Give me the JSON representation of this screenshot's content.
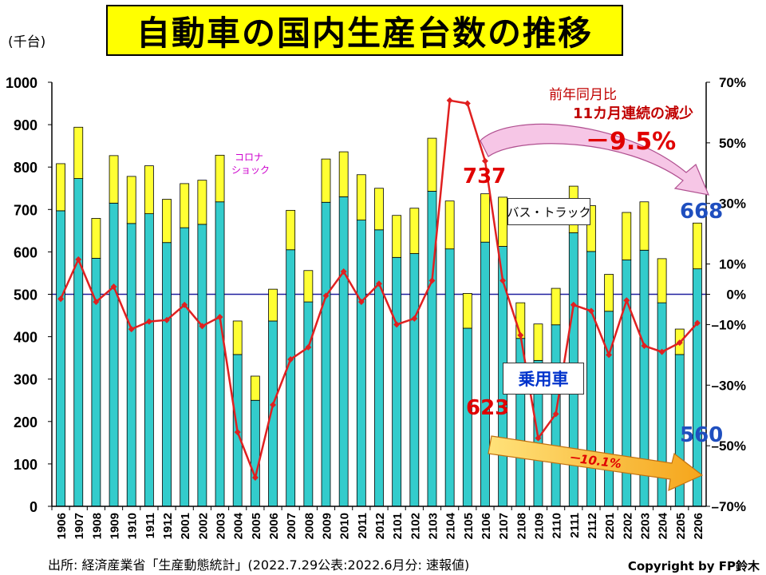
{
  "title": "自動車の国内生産台数の推移",
  "unit_label": "(千台)",
  "source": "出所: 経済産業省「生産動態統計」(2022.7.29公表:2022.6月分: 速報値)",
  "copyright": "Copyright by FP鈴木",
  "annotations": {
    "yoy_line1": "前年同月比",
    "yoy_line2": "11カ月連続の減少",
    "yoy_value": "－9.5%",
    "corona_line1": "コロナ",
    "corona_line2": "ショック",
    "bus_truck": "バス・トラック",
    "passenger_car": "乗用車",
    "total_2106": "737",
    "total_2206": "668",
    "car_2106": "623",
    "car_2206": "560",
    "car_change": "－10.1%"
  },
  "colors": {
    "passenger": "#33cccc",
    "bus_truck": "#ffff33",
    "yoy_line": "#e02020",
    "zero_line": "#1f1f9f"
  },
  "chart_data": {
    "type": "bar",
    "stacked": true,
    "categories": [
      "1906",
      "1907",
      "1908",
      "1909",
      "1910",
      "1911",
      "1912",
      "2001",
      "2002",
      "2003",
      "2004",
      "2005",
      "2006",
      "2007",
      "2008",
      "2009",
      "2010",
      "2011",
      "2012",
      "2101",
      "2102",
      "2103",
      "2104",
      "2105",
      "2106",
      "2107",
      "2108",
      "2109",
      "2110",
      "2111",
      "2112",
      "2201",
      "2202",
      "2203",
      "2204",
      "2205",
      "2206"
    ],
    "series": [
      {
        "name": "乗用車",
        "values": [
          697,
          773,
          585,
          715,
          667,
          690,
          622,
          657,
          665,
          718,
          358,
          250,
          437,
          605,
          482,
          717,
          730,
          675,
          652,
          587,
          596,
          743,
          607,
          420,
          623,
          613,
          396,
          344,
          428,
          645,
          601,
          460,
          581,
          604,
          480,
          358,
          560
        ]
      },
      {
        "name": "バス・トラック",
        "values": [
          111,
          121,
          94,
          112,
          111,
          113,
          102,
          104,
          104,
          110,
          79,
          57,
          75,
          93,
          74,
          102,
          106,
          107,
          98,
          99,
          107,
          125,
          113,
          82,
          114,
          116,
          84,
          86,
          86,
          110,
          108,
          87,
          112,
          114,
          104,
          60,
          108
        ]
      },
      {
        "name": "前年同月比",
        "axis": "right",
        "values": [
          -1.5,
          11.5,
          -2.5,
          2.5,
          -11.5,
          -9.0,
          -8.5,
          -3.5,
          -10.5,
          -7.5,
          -45.5,
          -60.5,
          -36.5,
          -21.5,
          -17.5,
          -0.5,
          7.5,
          -2.5,
          3.5,
          -10.0,
          -8.0,
          4.5,
          64.0,
          63.0,
          44.0,
          4.5,
          -13.5,
          -47.5,
          -39.5,
          -3.5,
          -5.5,
          -20.0,
          -2.0,
          -17.0,
          -19.0,
          -16.0,
          -9.5
        ]
      }
    ],
    "ylim": [
      0,
      1000
    ],
    "yticks": [
      0,
      100,
      200,
      300,
      400,
      500,
      600,
      700,
      800,
      900,
      1000
    ],
    "y2lim": [
      -70,
      70
    ],
    "y2ticks": [
      "70%",
      "50%",
      "30%",
      "10%",
      "0%",
      "–10%",
      "–30%",
      "–50%",
      "–70%"
    ],
    "y2tick_values": [
      70,
      50,
      30,
      10,
      0,
      -10,
      -30,
      -50,
      -70
    ]
  }
}
